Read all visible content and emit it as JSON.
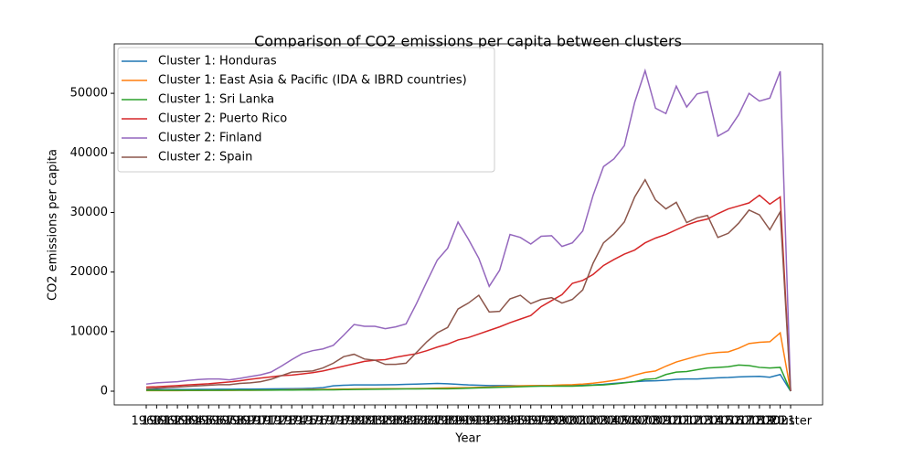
{
  "chart_data": {
    "type": "line",
    "title": "Comparison of CO2 emissions per capita between clusters",
    "x_label": "Year",
    "y_label": "CO2 emissions per capita",
    "categories": [
      "1960",
      "1961",
      "1962",
      "1963",
      "1964",
      "1965",
      "1966",
      "1967",
      "1968",
      "1969",
      "1970",
      "1971",
      "1972",
      "1973",
      "1974",
      "1975",
      "1976",
      "1977",
      "1978",
      "1979",
      "1980",
      "1981",
      "1982",
      "1983",
      "1984",
      "1985",
      "1986",
      "1987",
      "1988",
      "1989",
      "1990",
      "1991",
      "1992",
      "1993",
      "1994",
      "1995",
      "1996",
      "1997",
      "1998",
      "1999",
      "2000",
      "2001",
      "2002",
      "2003",
      "2004",
      "2005",
      "2006",
      "2007",
      "2008",
      "2009",
      "2010",
      "2011",
      "2012",
      "2013",
      "2014",
      "2015",
      "2016",
      "2017",
      "2018",
      "2019",
      "2020",
      "2021",
      "Cluster"
    ],
    "series": [
      {
        "name": "Cluster 1: Honduras",
        "color": "#1f77b4",
        "values": [
          250,
          260,
          270,
          280,
          290,
          300,
          310,
          320,
          330,
          340,
          350,
          360,
          380,
          400,
          420,
          450,
          500,
          600,
          900,
          1000,
          1050,
          1050,
          1050,
          1080,
          1100,
          1150,
          1200,
          1250,
          1300,
          1250,
          1150,
          1050,
          1000,
          950,
          950,
          950,
          900,
          900,
          950,
          950,
          1000,
          1000,
          1000,
          1050,
          1150,
          1300,
          1450,
          1600,
          1700,
          1750,
          1850,
          2000,
          2050,
          2050,
          2150,
          2250,
          2300,
          2400,
          2450,
          2500,
          2350,
          2800,
          1
        ]
      },
      {
        "name": "Cluster 1: East Asia & Pacific (IDA & IBRD countries)",
        "color": "#ff7f0e",
        "values": [
          90,
          90,
          90,
          100,
          110,
          120,
          130,
          130,
          140,
          150,
          160,
          170,
          190,
          220,
          250,
          270,
          280,
          300,
          320,
          360,
          380,
          400,
          410,
          420,
          430,
          430,
          450,
          470,
          520,
          550,
          570,
          600,
          650,
          700,
          780,
          850,
          900,
          950,
          950,
          980,
          1050,
          1100,
          1200,
          1350,
          1550,
          1800,
          2150,
          2700,
          3150,
          3400,
          4200,
          4900,
          5400,
          5900,
          6300,
          6500,
          6600,
          7200,
          8000,
          8200,
          8300,
          9800,
          1
        ]
      },
      {
        "name": "Cluster 1: Sri Lanka",
        "color": "#2ca02c",
        "values": [
          150,
          150,
          150,
          150,
          150,
          160,
          160,
          160,
          170,
          170,
          180,
          180,
          180,
          190,
          200,
          220,
          220,
          230,
          240,
          260,
          280,
          300,
          320,
          340,
          360,
          380,
          390,
          400,
          410,
          410,
          450,
          500,
          550,
          600,
          650,
          700,
          750,
          800,
          850,
          850,
          870,
          850,
          900,
          1000,
          1050,
          1200,
          1400,
          1600,
          2000,
          2100,
          2800,
          3200,
          3300,
          3600,
          3900,
          4000,
          4100,
          4400,
          4300,
          4000,
          3900,
          4000,
          1
        ]
      },
      {
        "name": "Cluster 2: Puerto Rico",
        "color": "#d62728",
        "values": [
          700,
          750,
          850,
          950,
          1050,
          1150,
          1250,
          1400,
          1550,
          1750,
          2000,
          2200,
          2400,
          2600,
          2700,
          2900,
          3100,
          3400,
          3800,
          4200,
          4600,
          5000,
          5200,
          5300,
          5700,
          6000,
          6300,
          6800,
          7400,
          7900,
          8600,
          9000,
          9600,
          10200,
          10800,
          11500,
          12100,
          12700,
          14200,
          15200,
          16200,
          18100,
          18600,
          19600,
          21100,
          22100,
          23000,
          23700,
          24900,
          25700,
          26300,
          27100,
          27900,
          28500,
          28900,
          29800,
          30600,
          31100,
          31600,
          32900,
          31400,
          32600,
          2
        ]
      },
      {
        "name": "Cluster 2: Finland",
        "color": "#9467bd",
        "values": [
          1200,
          1400,
          1500,
          1600,
          1800,
          1950,
          2050,
          2050,
          1900,
          2150,
          2450,
          2750,
          3200,
          4200,
          5300,
          6300,
          6800,
          7100,
          7700,
          9400,
          11200,
          10900,
          10900,
          10500,
          10800,
          11300,
          14700,
          18400,
          22000,
          24000,
          28400,
          25500,
          22300,
          17600,
          20300,
          26300,
          25800,
          24700,
          26000,
          26100,
          24300,
          24900,
          26900,
          32900,
          37700,
          39000,
          41200,
          48500,
          53800,
          47500,
          46600,
          51200,
          47700,
          49900,
          50300,
          42800,
          43800,
          46400,
          50000,
          48700,
          49200,
          53700,
          2
        ]
      },
      {
        "name": "Cluster 2: Spain",
        "color": "#8c564b",
        "values": [
          400,
          500,
          600,
          700,
          800,
          900,
          1000,
          1100,
          1100,
          1300,
          1400,
          1600,
          2000,
          2600,
          3200,
          3300,
          3400,
          3900,
          4700,
          5800,
          6200,
          5400,
          5200,
          4500,
          4500,
          4700,
          6500,
          8300,
          9800,
          10700,
          13800,
          14800,
          16100,
          13300,
          13400,
          15500,
          16100,
          14700,
          15400,
          15700,
          14800,
          15400,
          17000,
          21500,
          24900,
          26400,
          28400,
          32600,
          35500,
          32100,
          30600,
          31700,
          28300,
          29100,
          29500,
          25800,
          26500,
          28200,
          30400,
          29600,
          27100,
          30100,
          2
        ]
      }
    ],
    "ylim": [
      -2300,
      58300
    ],
    "yticks": [
      0,
      10000,
      20000,
      30000,
      40000,
      50000
    ],
    "legend": "upper left"
  }
}
